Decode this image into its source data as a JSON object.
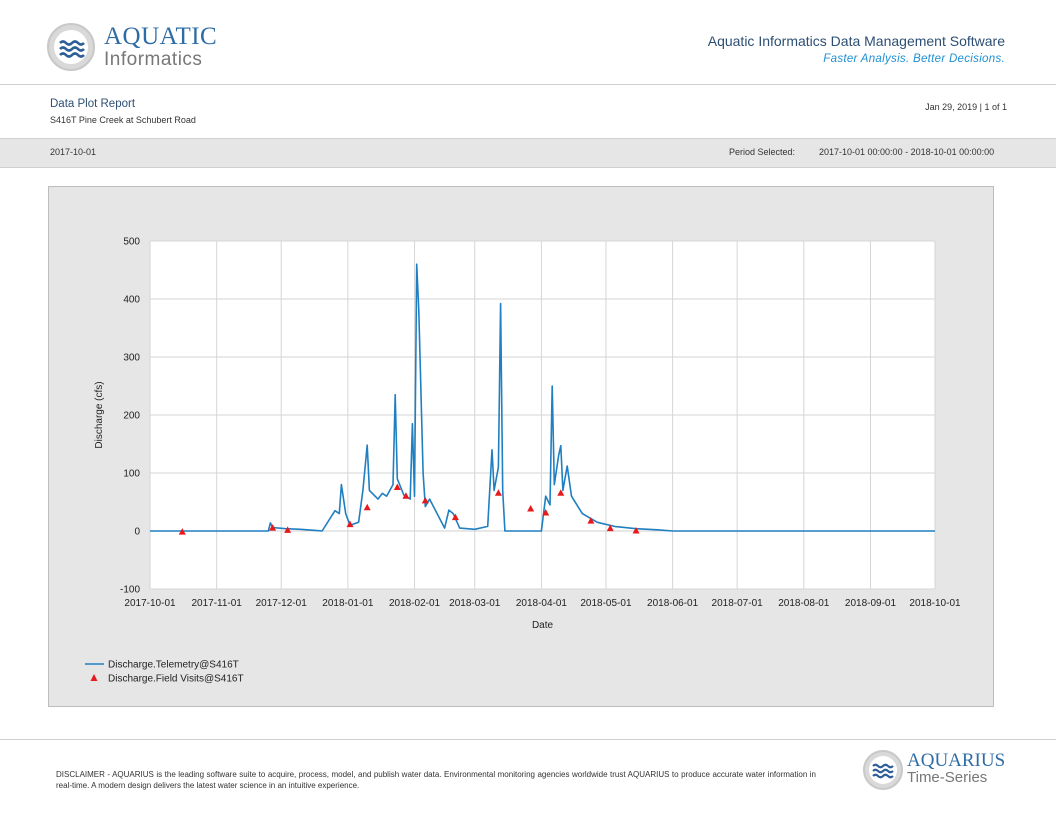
{
  "header": {
    "logo_line1": "AQUATIC",
    "logo_line2": "Informatics",
    "company": "Aquatic Informatics Data Management Software",
    "tagline": "Faster Analysis. Better Decisions."
  },
  "report": {
    "title": "Data Plot Report",
    "location": "S416T Pine Creek at Schubert Road",
    "date_page": "Jan 29, 2019 | 1 of 1"
  },
  "period_bar": {
    "start_date": "2017-10-01",
    "period_label": "Period Selected:",
    "period_value": "2017-10-01 00:00:00 - 2018-10-01 00:00:00"
  },
  "chart_data": {
    "type": "line",
    "xlabel": "Date",
    "ylabel": "Discharge (cfs)",
    "ylim": [
      -100,
      500
    ],
    "yticks": [
      -100,
      0,
      100,
      200,
      300,
      400,
      500
    ],
    "xlim": [
      "2017-10-01",
      "2018-10-01"
    ],
    "xticks": [
      "2017-10-01",
      "2017-11-01",
      "2017-12-01",
      "2018-01-01",
      "2018-02-01",
      "2018-03-01",
      "2018-04-01",
      "2018-05-01",
      "2018-06-01",
      "2018-07-01",
      "2018-08-01",
      "2018-09-01",
      "2018-10-01"
    ],
    "grid": true,
    "legend_position": "bottom-left",
    "series": [
      {
        "name": "Discharge.Telemetry@S416T",
        "style": "line",
        "color": "#1f7fc0",
        "points": [
          [
            "2017-10-01",
            0
          ],
          [
            "2017-11-25",
            0
          ],
          [
            "2017-11-26",
            14
          ],
          [
            "2017-11-27",
            6
          ],
          [
            "2017-12-03",
            4
          ],
          [
            "2017-12-10",
            3
          ],
          [
            "2017-12-17",
            1
          ],
          [
            "2017-12-20",
            0
          ],
          [
            "2017-12-26",
            35
          ],
          [
            "2017-12-28",
            30
          ],
          [
            "2017-12-29",
            80
          ],
          [
            "2017-12-31",
            30
          ],
          [
            "2018-01-02",
            10
          ],
          [
            "2018-01-06",
            15
          ],
          [
            "2018-01-08",
            70
          ],
          [
            "2018-01-10",
            148
          ],
          [
            "2018-01-11",
            70
          ],
          [
            "2018-01-15",
            55
          ],
          [
            "2018-01-17",
            65
          ],
          [
            "2018-01-19",
            60
          ],
          [
            "2018-01-22",
            80
          ],
          [
            "2018-01-23",
            235
          ],
          [
            "2018-01-24",
            90
          ],
          [
            "2018-01-27",
            62
          ],
          [
            "2018-01-30",
            55
          ],
          [
            "2018-01-31",
            185
          ],
          [
            "2018-02-01",
            60
          ],
          [
            "2018-02-02",
            460
          ],
          [
            "2018-02-03",
            380
          ],
          [
            "2018-02-05",
            100
          ],
          [
            "2018-02-06",
            42
          ],
          [
            "2018-02-08",
            55
          ],
          [
            "2018-02-15",
            5
          ],
          [
            "2018-02-17",
            36
          ],
          [
            "2018-02-19",
            30
          ],
          [
            "2018-02-22",
            5
          ],
          [
            "2018-03-01",
            3
          ],
          [
            "2018-03-07",
            8
          ],
          [
            "2018-03-09",
            140
          ],
          [
            "2018-03-10",
            70
          ],
          [
            "2018-03-12",
            110
          ],
          [
            "2018-03-13",
            392
          ],
          [
            "2018-03-14",
            70
          ],
          [
            "2018-03-15",
            0
          ],
          [
            "2018-04-01",
            0
          ],
          [
            "2018-04-03",
            60
          ],
          [
            "2018-04-05",
            45
          ],
          [
            "2018-04-06",
            250
          ],
          [
            "2018-04-07",
            80
          ],
          [
            "2018-04-09",
            130
          ],
          [
            "2018-04-10",
            147
          ],
          [
            "2018-04-11",
            70
          ],
          [
            "2018-04-13",
            112
          ],
          [
            "2018-04-15",
            60
          ],
          [
            "2018-04-20",
            30
          ],
          [
            "2018-04-27",
            15
          ],
          [
            "2018-05-05",
            8
          ],
          [
            "2018-05-15",
            4
          ],
          [
            "2018-05-25",
            2
          ],
          [
            "2018-06-01",
            0
          ],
          [
            "2018-10-01",
            0
          ]
        ]
      },
      {
        "name": "Discharge.Field Visits@S416T",
        "style": "marker",
        "marker": "triangle",
        "color": "#e8191d",
        "points": [
          [
            "2017-10-16",
            -2
          ],
          [
            "2017-11-27",
            5
          ],
          [
            "2017-12-04",
            1
          ],
          [
            "2018-01-02",
            11
          ],
          [
            "2018-01-10",
            40
          ],
          [
            "2018-01-24",
            75
          ],
          [
            "2018-01-28",
            60
          ],
          [
            "2018-02-06",
            52
          ],
          [
            "2018-02-20",
            23
          ],
          [
            "2018-03-12",
            65
          ],
          [
            "2018-03-27",
            38
          ],
          [
            "2018-04-03",
            31
          ],
          [
            "2018-04-10",
            65
          ],
          [
            "2018-04-24",
            17
          ],
          [
            "2018-05-03",
            4
          ],
          [
            "2018-05-15",
            0
          ]
        ]
      }
    ]
  },
  "footer": {
    "disclaimer": "DISCLAIMER - AQUARIUS is the leading software suite to acquire, process, model, and publish water data. Environmental monitoring agencies worldwide trust AQUARIUS to produce accurate water information in real-time. A modern design delivers the latest water science in an intuitive experience.",
    "logo_line1": "AQUARIUS",
    "logo_line2": "Time-Series"
  }
}
